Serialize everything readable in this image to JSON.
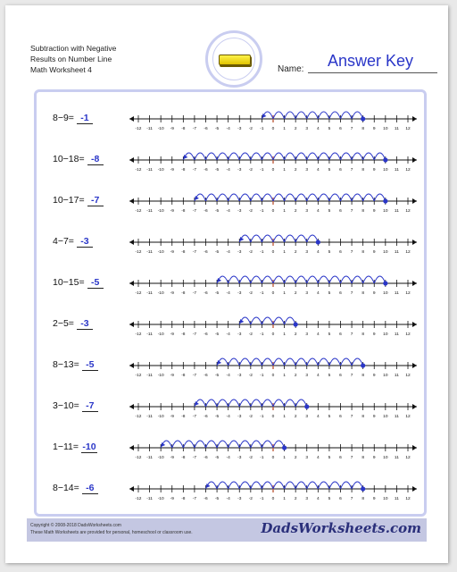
{
  "header": {
    "title_lines": [
      "Subtraction with Negative",
      "Results on Number Line",
      "Math Worksheet 4"
    ],
    "name_label": "Name:",
    "answer_key": "Answer Key"
  },
  "colors": {
    "accent": "#2a36c8",
    "frame": "#c9cdf0",
    "footer": "#c4c7e2",
    "zero_tick": "#c06040"
  },
  "number_line": {
    "min": -12,
    "max": 12,
    "tick_labels": [
      "-12",
      "-11",
      "-10",
      "-9",
      "-8",
      "-7",
      "-6",
      "-5",
      "-4",
      "-3",
      "-2",
      "-1",
      "0",
      "1",
      "2",
      "3",
      "4",
      "5",
      "6",
      "7",
      "8",
      "9",
      "10",
      "11",
      "12"
    ]
  },
  "problems": [
    {
      "expr": "8−9=",
      "start": 8,
      "end": -1,
      "answer": "-1"
    },
    {
      "expr": "10−18=",
      "start": 10,
      "end": -8,
      "answer": "-8"
    },
    {
      "expr": "10−17=",
      "start": 10,
      "end": -7,
      "answer": "-7"
    },
    {
      "expr": "4−7=",
      "start": 4,
      "end": -3,
      "answer": "-3"
    },
    {
      "expr": "10−15=",
      "start": 10,
      "end": -5,
      "answer": "-5"
    },
    {
      "expr": "2−5=",
      "start": 2,
      "end": -3,
      "answer": "-3"
    },
    {
      "expr": "8−13=",
      "start": 8,
      "end": -5,
      "answer": "-5"
    },
    {
      "expr": "3−10=",
      "start": 3,
      "end": -7,
      "answer": "-7"
    },
    {
      "expr": "1−11=",
      "start": 1,
      "end": -10,
      "answer": "-10"
    },
    {
      "expr": "8−14=",
      "start": 8,
      "end": -6,
      "answer": "-6"
    }
  ],
  "footer": {
    "copyright": "Copyright © 2008-2018 DadsWorksheets.com",
    "usage": "These Math Worksheets are provided for personal, homeschool or classroom use.",
    "brand": "DadsWorksheets.com"
  }
}
